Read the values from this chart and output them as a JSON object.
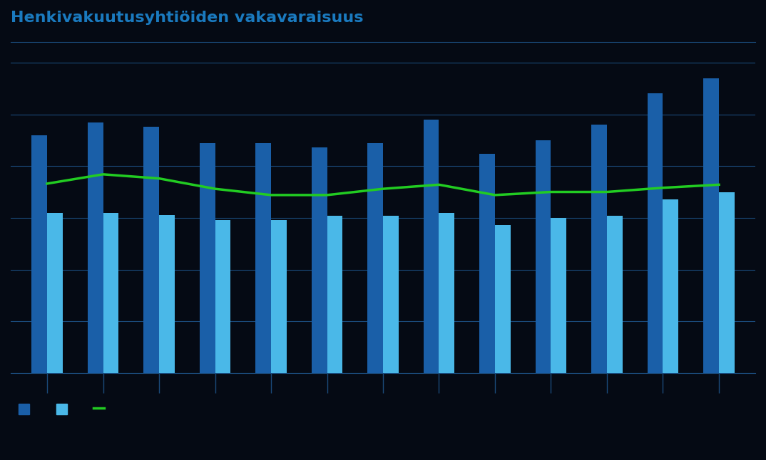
{
  "title": "Henkivakuutusyhtiöiden vakavaraisuus",
  "title_color": "#1a7abf",
  "background_color": "#050a14",
  "plot_bg_color": "#050a14",
  "grid_color": "#1a4a7a",
  "bar1_color": "#1a5fa8",
  "bar2_color": "#4ab8e8",
  "line_color": "#22cc22",
  "bar_width": 0.28,
  "ylim": [
    0,
    320
  ],
  "yticks": [],
  "n_groups": 13,
  "bar1_values": [
    230,
    242,
    238,
    222,
    222,
    218,
    222,
    245,
    212,
    225,
    240,
    270,
    285
  ],
  "bar2_values": [
    155,
    155,
    153,
    148,
    148,
    152,
    152,
    155,
    143,
    150,
    152,
    168,
    175
  ],
  "line_values": [
    183,
    192,
    188,
    178,
    172,
    172,
    178,
    182,
    172,
    175,
    175,
    179,
    182
  ],
  "legend_label1": "",
  "legend_label2": "",
  "legend_label3": ""
}
